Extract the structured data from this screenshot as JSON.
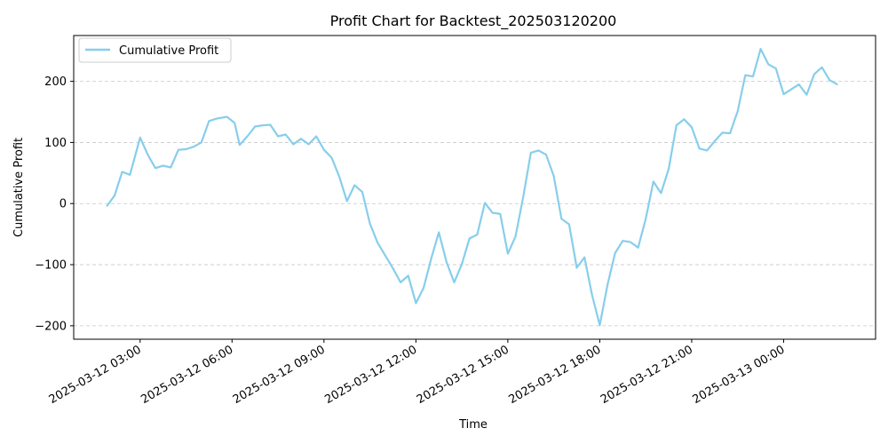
{
  "chart_data": {
    "type": "line",
    "title": "Profit Chart for Backtest_202503120200",
    "xlabel": "Time",
    "ylabel": "Cumulative Profit",
    "xlim": [
      "2025-03-12 00:50",
      "2025-03-13 03:00"
    ],
    "ylim": [
      -222,
      275
    ],
    "grid": {
      "x": false,
      "y": true,
      "style": "dashed"
    },
    "legend": {
      "placement": "upper-left"
    },
    "x_ticks": [
      "2025-03-12 03:00",
      "2025-03-12 06:00",
      "2025-03-12 09:00",
      "2025-03-12 12:00",
      "2025-03-12 15:00",
      "2025-03-12 18:00",
      "2025-03-12 21:00",
      "2025-03-13 00:00"
    ],
    "y_ticks": [
      -200,
      -100,
      0,
      100,
      200
    ],
    "x_tick_labels": [
      "2025-03-12 03:00",
      "2025-03-12 06:00",
      "2025-03-12 09:00",
      "2025-03-12 12:00",
      "2025-03-12 15:00",
      "2025-03-12 18:00",
      "2025-03-12 21:00",
      "2025-03-13 00:00"
    ],
    "y_tick_labels": [
      "−200",
      "−100",
      "0",
      "100",
      "200"
    ],
    "series": [
      {
        "name": "Cumulative Profit",
        "color": "#87CEEB",
        "points": [
          [
            "2025-03-12 01:55",
            -4
          ],
          [
            "2025-03-12 02:10",
            13
          ],
          [
            "2025-03-12 02:25",
            52
          ],
          [
            "2025-03-12 02:40",
            47
          ],
          [
            "2025-03-12 03:00",
            108
          ],
          [
            "2025-03-12 03:15",
            80
          ],
          [
            "2025-03-12 03:30",
            58
          ],
          [
            "2025-03-12 03:45",
            62
          ],
          [
            "2025-03-12 04:00",
            59
          ],
          [
            "2025-03-12 04:15",
            88
          ],
          [
            "2025-03-12 04:30",
            89
          ],
          [
            "2025-03-12 04:45",
            93
          ],
          [
            "2025-03-12 05:00",
            100
          ],
          [
            "2025-03-12 05:15",
            135
          ],
          [
            "2025-03-12 05:30",
            139
          ],
          [
            "2025-03-12 05:50",
            142
          ],
          [
            "2025-03-12 06:05",
            132
          ],
          [
            "2025-03-12 06:15",
            96
          ],
          [
            "2025-03-12 06:30",
            110
          ],
          [
            "2025-03-12 06:45",
            126
          ],
          [
            "2025-03-12 07:00",
            128
          ],
          [
            "2025-03-12 07:15",
            129
          ],
          [
            "2025-03-12 07:30",
            110
          ],
          [
            "2025-03-12 07:45",
            113
          ],
          [
            "2025-03-12 08:00",
            97
          ],
          [
            "2025-03-12 08:15",
            106
          ],
          [
            "2025-03-12 08:30",
            97
          ],
          [
            "2025-03-12 08:45",
            110
          ],
          [
            "2025-03-12 09:00",
            88
          ],
          [
            "2025-03-12 09:15",
            75
          ],
          [
            "2025-03-12 09:30",
            44
          ],
          [
            "2025-03-12 09:45",
            4
          ],
          [
            "2025-03-12 10:00",
            30
          ],
          [
            "2025-03-12 10:15",
            19
          ],
          [
            "2025-03-12 10:30",
            -33
          ],
          [
            "2025-03-12 10:45",
            -64
          ],
          [
            "2025-03-12 11:00",
            -85
          ],
          [
            "2025-03-12 11:15",
            -106
          ],
          [
            "2025-03-12 11:30",
            -129
          ],
          [
            "2025-03-12 11:45",
            -118
          ],
          [
            "2025-03-12 12:00",
            -163
          ],
          [
            "2025-03-12 12:15",
            -138
          ],
          [
            "2025-03-12 12:30",
            -90
          ],
          [
            "2025-03-12 12:45",
            -47
          ],
          [
            "2025-03-12 13:00",
            -96
          ],
          [
            "2025-03-12 13:15",
            -129
          ],
          [
            "2025-03-12 13:30",
            -99
          ],
          [
            "2025-03-12 13:45",
            -57
          ],
          [
            "2025-03-12 14:00",
            -51
          ],
          [
            "2025-03-12 14:15",
            1
          ],
          [
            "2025-03-12 14:30",
            -15
          ],
          [
            "2025-03-12 14:45",
            -17
          ],
          [
            "2025-03-12 15:00",
            -82
          ],
          [
            "2025-03-12 15:15",
            -54
          ],
          [
            "2025-03-12 15:30",
            10
          ],
          [
            "2025-03-12 15:45",
            83
          ],
          [
            "2025-03-12 16:00",
            87
          ],
          [
            "2025-03-12 16:15",
            80
          ],
          [
            "2025-03-12 16:30",
            45
          ],
          [
            "2025-03-12 16:45",
            -25
          ],
          [
            "2025-03-12 17:00",
            -34
          ],
          [
            "2025-03-12 17:15",
            -105
          ],
          [
            "2025-03-12 17:30",
            -88
          ],
          [
            "2025-03-12 17:45",
            -150
          ],
          [
            "2025-03-12 18:00",
            -199
          ],
          [
            "2025-03-12 18:15",
            -134
          ],
          [
            "2025-03-12 18:30",
            -81
          ],
          [
            "2025-03-12 18:45",
            -61
          ],
          [
            "2025-03-12 19:00",
            -63
          ],
          [
            "2025-03-12 19:15",
            -72
          ],
          [
            "2025-03-12 19:30",
            -25
          ],
          [
            "2025-03-12 19:45",
            36
          ],
          [
            "2025-03-12 20:00",
            17
          ],
          [
            "2025-03-12 20:15",
            57
          ],
          [
            "2025-03-12 20:30",
            128
          ],
          [
            "2025-03-12 20:45",
            138
          ],
          [
            "2025-03-12 21:00",
            125
          ],
          [
            "2025-03-12 21:15",
            90
          ],
          [
            "2025-03-12 21:30",
            87
          ],
          [
            "2025-03-12 21:45",
            102
          ],
          [
            "2025-03-12 22:00",
            116
          ],
          [
            "2025-03-12 22:15",
            115
          ],
          [
            "2025-03-12 22:30",
            151
          ],
          [
            "2025-03-12 22:45",
            210
          ],
          [
            "2025-03-12 23:00",
            208
          ],
          [
            "2025-03-12 23:15",
            253
          ],
          [
            "2025-03-12 23:30",
            228
          ],
          [
            "2025-03-12 23:45",
            221
          ],
          [
            "2025-03-13 00:00",
            179
          ],
          [
            "2025-03-13 00:15",
            187
          ],
          [
            "2025-03-13 00:30",
            195
          ],
          [
            "2025-03-13 00:45",
            178
          ],
          [
            "2025-03-13 01:00",
            212
          ],
          [
            "2025-03-13 01:15",
            223
          ],
          [
            "2025-03-13 01:30",
            202
          ],
          [
            "2025-03-13 01:45",
            195
          ]
        ]
      }
    ]
  }
}
